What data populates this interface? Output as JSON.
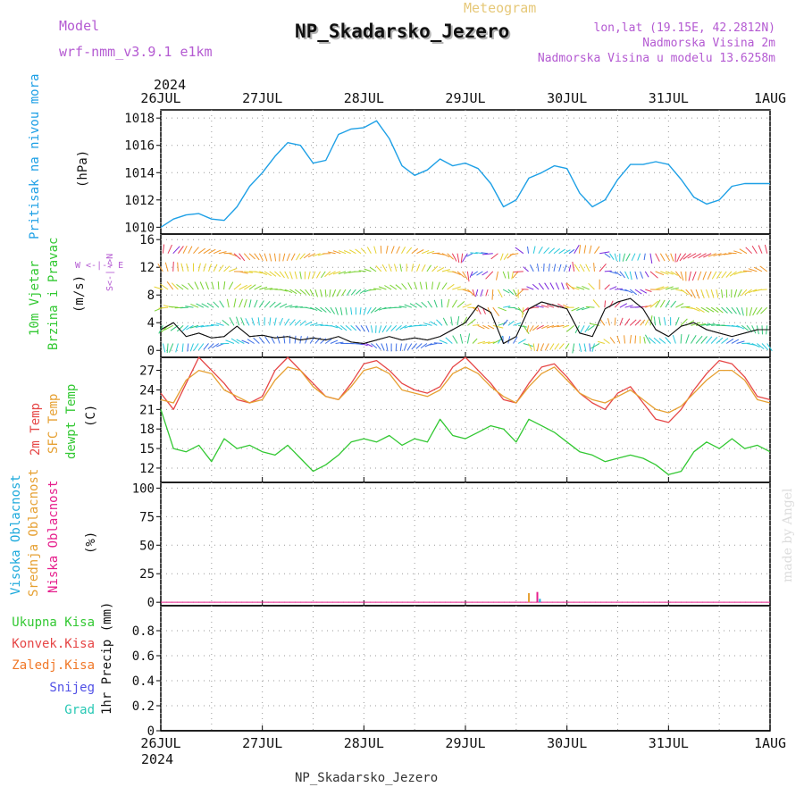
{
  "header": {
    "model_label": "Model",
    "model_name": "wrf-nmm_v3.9.1 e1km",
    "meteogram_label": "Meteogram",
    "station_title": "NP_Skadarsko_Jezero",
    "lonlat": "lon,lat (19.15E, 42.2812N)",
    "elevation": "Nadmorska Visina 2m",
    "model_elevation": "Nadmorska Visina u modelu 13.6258m",
    "footer_title": "NP_Skadarsko_Jezero",
    "watermark": "made by Angel"
  },
  "colors": {
    "pressure": "#1ea0e6",
    "temp_2m": "#e64646",
    "temp_sfc": "#e6a032",
    "dewpoint": "#32c832",
    "label_magenta": "#b45ad2",
    "cloud_high": "#1eaadc",
    "cloud_mid": "#e6a032",
    "cloud_low": "#e61e8c",
    "precip_total": "#32c832",
    "precip_conv": "#e64646",
    "precip_frozen": "#f07828",
    "precip_snow": "#5050e6",
    "precip_hail": "#28c8b4"
  },
  "chart_data": [
    {
      "type": "line",
      "name": "pressure",
      "ylabel_main": "Pritisak na nivou mora",
      "ylabel_unit": "(hPa)",
      "ylim": [
        1009.5,
        1018.6
      ],
      "yticks": [
        1010,
        1012,
        1014,
        1016,
        1018
      ],
      "grid": true,
      "x_start_date": "2024-07-26",
      "x_ticks": [
        "26JUL",
        "27JUL",
        "28JUL",
        "29JUL",
        "30JUL",
        "31JUL",
        "1AUG"
      ],
      "x_top_year": "2024",
      "series": [
        {
          "color_key": "pressure",
          "hours": [
            0,
            3,
            6,
            9,
            12,
            15,
            18,
            21,
            24,
            27,
            30,
            33,
            36,
            39,
            42,
            45,
            48,
            51,
            54,
            57,
            60,
            63,
            66,
            69,
            72,
            75,
            78,
            81,
            84,
            87,
            90,
            93,
            96,
            99,
            102,
            105,
            108,
            111,
            114,
            117,
            120,
            123,
            126,
            129,
            132,
            135,
            138,
            141,
            144
          ],
          "values": [
            1010.0,
            1010.6,
            1010.9,
            1011.0,
            1010.6,
            1010.5,
            1011.5,
            1013.0,
            1014.0,
            1015.2,
            1016.2,
            1016.0,
            1014.7,
            1014.9,
            1016.8,
            1017.2,
            1017.3,
            1017.8,
            1016.5,
            1014.5,
            1013.8,
            1014.2,
            1015.0,
            1014.5,
            1014.7,
            1014.3,
            1013.2,
            1011.5,
            1012.0,
            1013.6,
            1014.0,
            1014.5,
            1014.3,
            1012.5,
            1011.5,
            1012.0,
            1013.5,
            1014.6,
            1014.6,
            1014.8,
            1014.6,
            1013.5,
            1012.2,
            1011.7,
            1012.0,
            1013.0,
            1013.2,
            1013.2,
            1013.2
          ]
        }
      ]
    },
    {
      "type": "line",
      "name": "wind",
      "ylabel_main": "10m Vjetar",
      "ylabel_main2": "Brzina i Pravac",
      "ylabel_unit": "(m/s)",
      "compass_label": "W <-|-> E",
      "compass_label2": "S<-|->N",
      "ylim": [
        -1.0,
        16.8
      ],
      "yticks": [
        0,
        4,
        8,
        12,
        16
      ],
      "grid": true,
      "series": [
        {
          "name": "speed",
          "hours": [
            0,
            3,
            6,
            9,
            12,
            15,
            18,
            21,
            24,
            27,
            30,
            33,
            36,
            39,
            42,
            45,
            48,
            51,
            54,
            57,
            60,
            63,
            66,
            69,
            72,
            75,
            78,
            81,
            84,
            87,
            90,
            93,
            96,
            99,
            102,
            105,
            108,
            111,
            114,
            117,
            120,
            123,
            126,
            129,
            132,
            135,
            138,
            141,
            144
          ],
          "values": [
            3.0,
            4.0,
            2.0,
            2.5,
            1.8,
            2.0,
            3.5,
            2.0,
            2.2,
            1.8,
            2.0,
            1.5,
            1.8,
            1.5,
            2.0,
            1.2,
            1.0,
            1.5,
            2.0,
            1.5,
            1.8,
            1.5,
            2.0,
            3.0,
            4.0,
            6.5,
            5.5,
            1.0,
            2.0,
            6.0,
            7.0,
            6.5,
            6.0,
            2.5,
            2.0,
            6.0,
            7.0,
            7.5,
            6.0,
            3.0,
            2.0,
            3.5,
            4.0,
            3.0,
            2.5,
            2.0,
            2.5,
            3.0,
            3.0
          ]
        }
      ]
    },
    {
      "type": "line",
      "name": "temperature",
      "ylabel_2m": "2m Temp",
      "ylabel_sfc": "SFC Temp",
      "ylabel_dew": "dewpt Temp",
      "ylabel_unit": "(C)",
      "ylim": [
        9.8,
        29.0
      ],
      "yticks": [
        12,
        15,
        18,
        21,
        24,
        27
      ],
      "grid": true,
      "series": [
        {
          "color_key": "temp_2m",
          "hours": [
            0,
            3,
            6,
            9,
            12,
            15,
            18,
            21,
            24,
            27,
            30,
            33,
            36,
            39,
            42,
            45,
            48,
            51,
            54,
            57,
            60,
            63,
            66,
            69,
            72,
            75,
            78,
            81,
            84,
            87,
            90,
            93,
            96,
            99,
            102,
            105,
            108,
            111,
            114,
            117,
            120,
            123,
            126,
            129,
            132,
            135,
            138,
            141,
            144
          ],
          "values": [
            23.5,
            21.0,
            25.0,
            29.0,
            27.0,
            25.0,
            22.5,
            22.0,
            23.0,
            27.0,
            29.0,
            27.0,
            25.0,
            23.0,
            22.5,
            25.0,
            28.0,
            28.5,
            27.0,
            25.0,
            24.0,
            23.5,
            24.5,
            27.5,
            29.0,
            27.0,
            25.0,
            22.5,
            22.0,
            25.0,
            27.5,
            28.0,
            26.0,
            23.5,
            22.0,
            21.0,
            23.5,
            24.5,
            22.0,
            19.5,
            19.0,
            21.0,
            24.0,
            26.5,
            28.5,
            28.0,
            26.0,
            23.0,
            22.5
          ]
        },
        {
          "color_key": "temp_sfc",
          "hours": [
            0,
            3,
            6,
            9,
            12,
            15,
            18,
            21,
            24,
            27,
            30,
            33,
            36,
            39,
            42,
            45,
            48,
            51,
            54,
            57,
            60,
            63,
            66,
            69,
            72,
            75,
            78,
            81,
            84,
            87,
            90,
            93,
            96,
            99,
            102,
            105,
            108,
            111,
            114,
            117,
            120,
            123,
            126,
            129,
            132,
            135,
            138,
            141,
            144
          ],
          "values": [
            22.5,
            22.0,
            25.5,
            27.0,
            26.5,
            24.0,
            23.0,
            22.0,
            22.5,
            25.5,
            27.5,
            27.0,
            24.5,
            23.0,
            22.5,
            24.5,
            27.0,
            27.5,
            26.5,
            24.0,
            23.5,
            23.0,
            24.0,
            26.5,
            27.5,
            26.5,
            24.5,
            23.0,
            22.0,
            24.5,
            26.5,
            27.5,
            25.5,
            23.5,
            22.5,
            22.0,
            23.0,
            24.0,
            22.5,
            21.0,
            20.5,
            21.5,
            23.5,
            25.5,
            27.0,
            27.0,
            25.5,
            22.5,
            22.0
          ]
        },
        {
          "color_key": "dewpoint",
          "hours": [
            0,
            3,
            6,
            9,
            12,
            15,
            18,
            21,
            24,
            27,
            30,
            33,
            36,
            39,
            42,
            45,
            48,
            51,
            54,
            57,
            60,
            63,
            66,
            69,
            72,
            75,
            78,
            81,
            84,
            87,
            90,
            93,
            96,
            99,
            102,
            105,
            108,
            111,
            114,
            117,
            120,
            123,
            126,
            129,
            132,
            135,
            138,
            141,
            144
          ],
          "values": [
            21.0,
            15.0,
            14.5,
            15.5,
            13.0,
            16.5,
            15.0,
            15.5,
            14.5,
            14.0,
            15.5,
            13.5,
            11.5,
            12.5,
            14.0,
            16.0,
            16.5,
            16.0,
            17.0,
            15.5,
            16.5,
            16.0,
            19.5,
            17.0,
            16.5,
            17.5,
            18.5,
            18.0,
            16.0,
            19.5,
            18.5,
            17.5,
            16.0,
            14.5,
            14.0,
            13.0,
            13.5,
            14.0,
            13.5,
            12.5,
            11.0,
            11.5,
            14.5,
            16.0,
            15.0,
            16.5,
            15.0,
            15.5,
            14.5
          ]
        }
      ]
    },
    {
      "type": "bar",
      "name": "clouds",
      "ylabel_high": "Visoka Oblacnost",
      "ylabel_mid": "Srednja Oblacnost",
      "ylabel_low": "Niska Oblacnost",
      "ylabel_unit": "(%)",
      "ylim": [
        -3,
        105
      ],
      "yticks": [
        0,
        25,
        50,
        75,
        100
      ],
      "grid": true,
      "series": [
        {
          "color_key": "cloud_mid",
          "hours": [
            87.0
          ],
          "values": [
            8
          ]
        },
        {
          "color_key": "cloud_low",
          "hours": [
            89.0
          ],
          "values": [
            9
          ]
        },
        {
          "color_key": "cloud_high",
          "hours": [
            89.6
          ],
          "values": [
            3
          ]
        }
      ]
    },
    {
      "type": "bar",
      "name": "precip",
      "ylabel_total": "Ukupna Kisa",
      "ylabel_conv": "Konvek.Kisa",
      "ylabel_frozen": "Zaledj.Kisa",
      "ylabel_snow": "Snijeg",
      "ylabel_hail": "Grad",
      "ylabel_unit": "1hr Precip (mm)",
      "ylim": [
        0,
        1.0
      ],
      "yticks": [
        0,
        0.2,
        0.4,
        0.6,
        0.8
      ],
      "ytick_labels": [
        "0",
        "0.2",
        "0.4",
        "0.6",
        "0.8"
      ],
      "grid": true,
      "x_ticks": [
        "26JUL",
        "27JUL",
        "28JUL",
        "29JUL",
        "30JUL",
        "31JUL",
        "1AUG"
      ],
      "x_bottom_year": "2024",
      "series": []
    }
  ]
}
